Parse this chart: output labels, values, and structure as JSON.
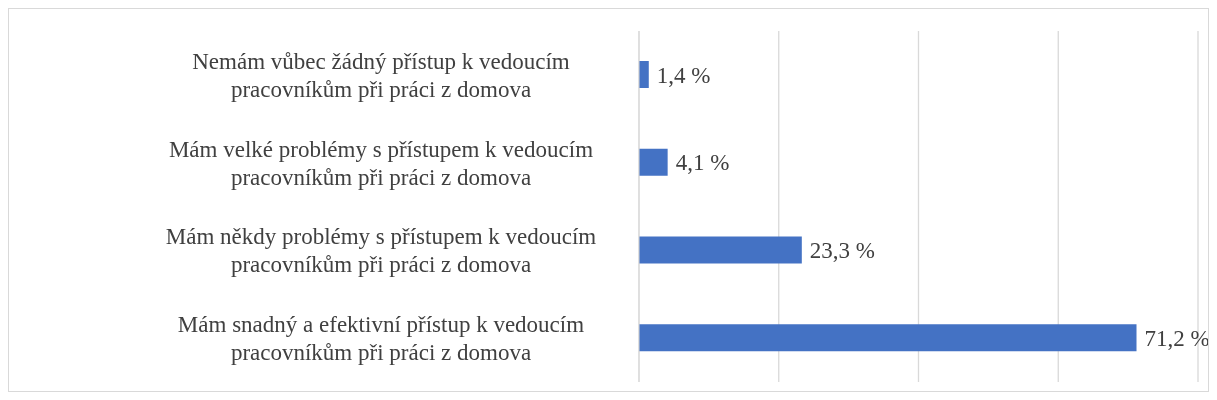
{
  "chart_data": {
    "type": "bar",
    "orientation": "horizontal",
    "categories": [
      "Nemám vůbec žádný přístup k vedoucím pracovníkům při práci z domova",
      "Mám velké problémy s přístupem k vedoucím pracovníkům při práci z domova",
      "Mám někdy problémy s přístupem k vedoucím pracovníkům při práci z domova",
      "Mám snadný a efektivní přístup k vedoucím pracovníkům při práci z domova"
    ],
    "values": [
      1.4,
      4.1,
      23.3,
      71.2
    ],
    "value_labels": [
      "1,4 %",
      "4,1 %",
      "23,3 %",
      "71,2 %"
    ],
    "color": "#4472c4",
    "xlim": [
      0,
      80
    ],
    "xticks": [
      {
        "value": 0,
        "label": null
      },
      {
        "value": 20,
        "label": null
      },
      {
        "value": 40,
        "label": null
      },
      {
        "value": 60,
        "label": null
      },
      {
        "value": 80,
        "label": null
      }
    ],
    "grid": "x",
    "tick_labels": "y",
    "legend": false
  }
}
